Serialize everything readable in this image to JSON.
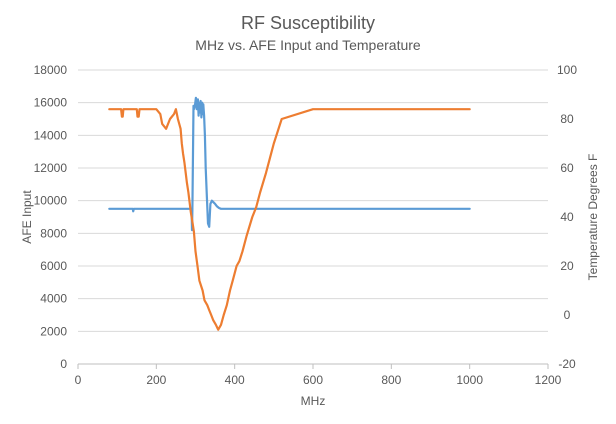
{
  "chart_data": {
    "type": "line",
    "title": "RF Susceptibility",
    "subtitle": "MHz vs. AFE Input and Temperature",
    "xlabel": "MHz",
    "ylabel": "AFE Input",
    "y2label": "Temperature Degrees F",
    "xlim": [
      0,
      1200
    ],
    "ylim": [
      0,
      18000
    ],
    "y2lim": [
      -20,
      100
    ],
    "xticks": [
      "0",
      "200",
      "400",
      "600",
      "800",
      "1000",
      "1200"
    ],
    "yticks": [
      "0",
      "2000",
      "4000",
      "6000",
      "8000",
      "10000",
      "12000",
      "14000",
      "16000",
      "18000"
    ],
    "y2ticks": [
      "-20",
      "0",
      "20",
      "40",
      "60",
      "80",
      "100"
    ],
    "grid": "horizontal",
    "legend": "none",
    "series": [
      {
        "axis": "left",
        "color": "#5B9BD5",
        "x": [
          80,
          140,
          141,
          142,
          143,
          150,
          200,
          280,
          290,
          291,
          292,
          295,
          296,
          299,
          301,
          303,
          306,
          308,
          309,
          311,
          313,
          315,
          317,
          319,
          320,
          322,
          324,
          326,
          329,
          332,
          335,
          338,
          342,
          346,
          350,
          355,
          360,
          365,
          375,
          390,
          420,
          500,
          600,
          800,
          1000
        ],
        "y": [
          9500,
          9500,
          9350,
          9450,
          9500,
          9500,
          9500,
          9500,
          9500,
          8200,
          9500,
          15800,
          15600,
          15900,
          16300,
          15600,
          16200,
          15200,
          16000,
          15400,
          16100,
          15100,
          16000,
          15300,
          15900,
          15200,
          14000,
          12000,
          10200,
          8600,
          8400,
          9800,
          10000,
          9900,
          9800,
          9650,
          9550,
          9500,
          9500,
          9500,
          9500,
          9500,
          9500,
          9500,
          9500
        ]
      },
      {
        "axis": "right",
        "color": "#ED7D31",
        "x": [
          80,
          110,
          112,
          114,
          116,
          150,
          152,
          155,
          157,
          200,
          210,
          215,
          225,
          235,
          245,
          250,
          255,
          262,
          265,
          268,
          272,
          275,
          278,
          282,
          285,
          288,
          292,
          296,
          300,
          305,
          310,
          318,
          323,
          330,
          335,
          340,
          345,
          352,
          358,
          365,
          372,
          380,
          388,
          395,
          405,
          412,
          420,
          430,
          445,
          455,
          465,
          480,
          490,
          500,
          520,
          600,
          800,
          1000
        ],
        "y": [
          84,
          84,
          81,
          81,
          84,
          84,
          81,
          81,
          84,
          84,
          82,
          78,
          76,
          80,
          82,
          84,
          80,
          76,
          70,
          66,
          62,
          58,
          54,
          50,
          46,
          42,
          38,
          34,
          26,
          20,
          14,
          10,
          6,
          4,
          2,
          0,
          -2,
          -4,
          -6,
          -4,
          0,
          4,
          10,
          14,
          20,
          22,
          26,
          32,
          40,
          44,
          50,
          58,
          64,
          70,
          80,
          84,
          84,
          84
        ]
      }
    ]
  }
}
